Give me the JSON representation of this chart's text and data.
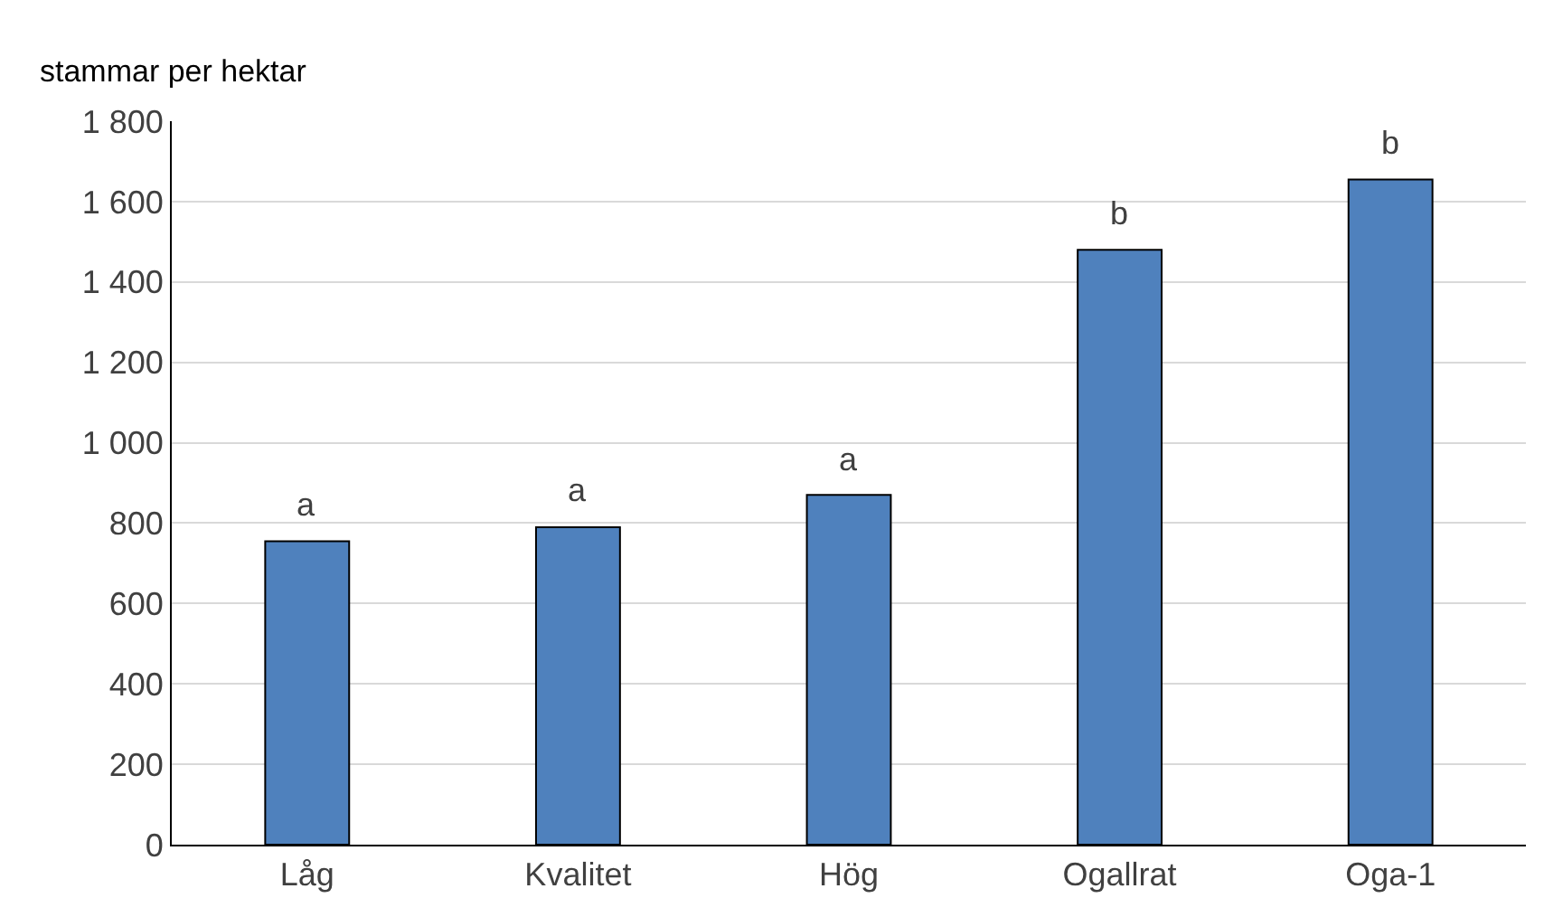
{
  "chart_data": {
    "type": "bar",
    "ylabel": "stammar per hektar",
    "categories": [
      "Låg",
      "Kvalitet",
      "Hög",
      "Ogallrat",
      "Oga-1"
    ],
    "values": [
      755,
      790,
      870,
      1480,
      1655
    ],
    "color": "#4f81bd",
    "ylim": [
      0,
      1800
    ],
    "yticks": [
      0,
      200,
      400,
      600,
      800,
      {
        "value": 1000,
        "label": "1 000"
      },
      {
        "value": 1200,
        "label": "1 200"
      },
      {
        "value": 1400,
        "label": "1 400"
      },
      {
        "value": 1600,
        "label": "1 600"
      },
      {
        "value": 1800,
        "label": "1 800"
      }
    ],
    "grid": "y",
    "annotations": [
      {
        "text": "a",
        "x": "Låg",
        "y": 755
      },
      {
        "text": "a",
        "x": "Kvalitet",
        "y": 790
      },
      {
        "text": "a",
        "x": "Hög",
        "y": 870
      },
      {
        "text": "b",
        "x": "Ogallrat",
        "y": 1480
      },
      {
        "text": "b",
        "x": "Oga-1",
        "y": 1655
      }
    ]
  }
}
